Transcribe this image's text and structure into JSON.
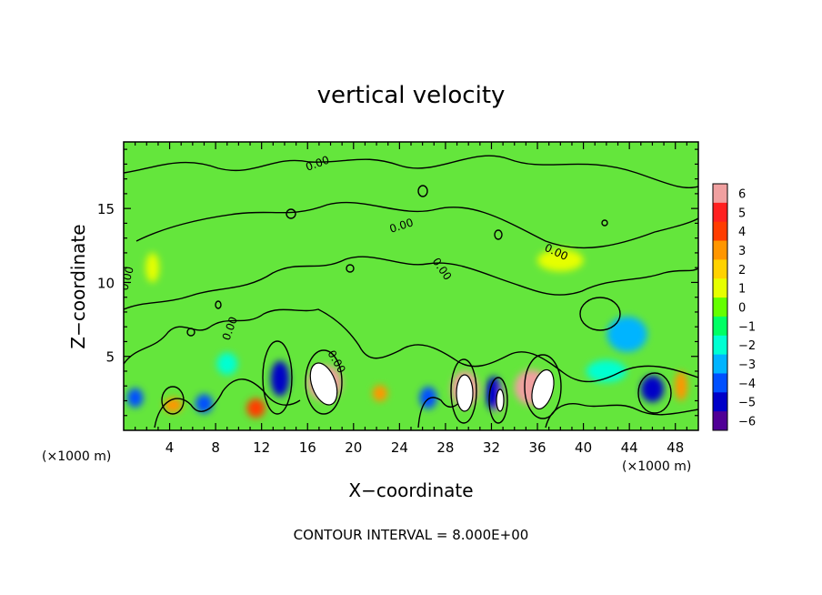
{
  "chart_data": {
    "type": "heatmap",
    "title": "vertical velocity",
    "xlabel": "X−coordinate",
    "ylabel": "Z−coordinate",
    "x_unit_label": "(×1000 m)",
    "y_unit_label": "(×1000 m)",
    "xlim": [
      0,
      50
    ],
    "ylim": [
      0,
      19.5
    ],
    "x_ticks": [
      4,
      8,
      12,
      16,
      20,
      24,
      28,
      32,
      36,
      40,
      44,
      48
    ],
    "y_ticks": [
      5,
      10,
      15
    ],
    "colorbar": {
      "min": -6,
      "max": 6,
      "ticks": [
        6,
        5,
        4,
        3,
        2,
        1,
        0,
        -1,
        -2,
        -3,
        -4,
        -5,
        -6
      ],
      "tick_labels": [
        "6",
        "5",
        "4",
        "3",
        "2",
        "1",
        "0",
        "−1",
        "−2",
        "−3",
        "−4",
        "−5",
        "−6"
      ],
      "colors": [
        "#f0a0a0",
        "#ff2020",
        "#ff3c00",
        "#ff9600",
        "#ffd200",
        "#e6ff00",
        "#64ff00",
        "#00ff64",
        "#00ffd2",
        "#00b4ff",
        "#0050ff",
        "#0000c8",
        "#500096"
      ]
    },
    "contour_label": "0.00",
    "contour_interval_text": "CONTOUR INTERVAL = 8.000E+00",
    "cells": [
      {
        "x": 17.5,
        "z": 3.2,
        "w": 3.0,
        "h": 2.4,
        "v": 6
      },
      {
        "x": 29.7,
        "z": 2.8,
        "w": 2.4,
        "h": 2.4,
        "v": 6
      },
      {
        "x": 35.5,
        "z": 2.9,
        "w": 3.0,
        "h": 2.4,
        "v": 6
      },
      {
        "x": 32.5,
        "z": 2.3,
        "w": 1.2,
        "h": 2.0,
        "v": 6
      },
      {
        "x": 13.6,
        "z": 3.5,
        "w": 1.6,
        "h": 2.4,
        "v": -5
      },
      {
        "x": 32.2,
        "z": 2.5,
        "w": 1.4,
        "h": 2.3,
        "v": -5
      },
      {
        "x": 46.0,
        "z": 2.8,
        "w": 2.0,
        "h": 1.8,
        "v": -5
      },
      {
        "x": 7.0,
        "z": 1.8,
        "w": 1.5,
        "h": 1.3,
        "v": -4
      },
      {
        "x": 1.0,
        "z": 2.2,
        "w": 1.4,
        "h": 1.3,
        "v": -4
      },
      {
        "x": 26.5,
        "z": 2.2,
        "w": 1.5,
        "h": 1.5,
        "v": -4
      },
      {
        "x": 11.5,
        "z": 1.5,
        "w": 1.6,
        "h": 1.3,
        "v": 4
      },
      {
        "x": 4.3,
        "z": 1.7,
        "w": 1.6,
        "h": 1.0,
        "v": 3
      },
      {
        "x": 22.3,
        "z": 2.5,
        "w": 1.3,
        "h": 1.1,
        "v": 3
      },
      {
        "x": 48.5,
        "z": 3.0,
        "w": 1.1,
        "h": 2.0,
        "v": 3
      },
      {
        "x": 43.8,
        "z": 6.5,
        "w": 3.5,
        "h": 2.4,
        "v": -3
      },
      {
        "x": 9.0,
        "z": 4.5,
        "w": 1.8,
        "h": 1.5,
        "v": -2
      },
      {
        "x": 42.0,
        "z": 4.0,
        "w": 3.5,
        "h": 1.5,
        "v": -2
      },
      {
        "x": 2.5,
        "z": 11.0,
        "w": 1.2,
        "h": 2.0,
        "v": 1
      },
      {
        "x": 38.0,
        "z": 11.5,
        "w": 4.0,
        "h": 1.5,
        "v": 1
      }
    ]
  },
  "annotations": {
    "labels": [
      "0.00",
      "0.00",
      "0.00",
      "0.00",
      "0.00",
      "0.00",
      "0.00"
    ]
  }
}
